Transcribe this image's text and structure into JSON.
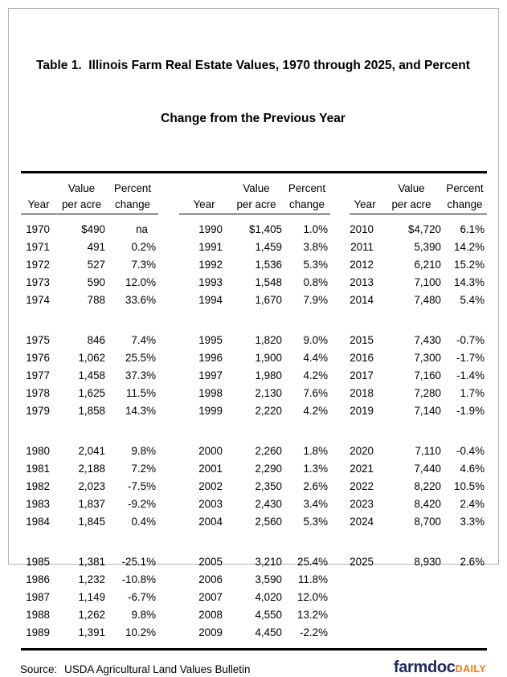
{
  "title": {
    "line1": "Table 1.  Illinois Farm Real Estate Values, 1970 through 2025, and Percent",
    "line2": "Change from the Previous Year"
  },
  "header": {
    "year": "Year",
    "value_top": "Value",
    "value_bottom": "per acre",
    "pct_top": "Percent",
    "pct_bottom": "change"
  },
  "table": {
    "blocks": [
      {
        "rows": [
          [
            "1970",
            "$490",
            "na",
            "1990",
            "$1,405",
            "1.0%",
            "2010",
            "$4,720",
            "6.1%"
          ],
          [
            "1971",
            "491",
            "0.2%",
            "1991",
            "1,459",
            "3.8%",
            "2011",
            "5,390",
            "14.2%"
          ],
          [
            "1972",
            "527",
            "7.3%",
            "1992",
            "1,536",
            "5.3%",
            "2012",
            "6,210",
            "15.2%"
          ],
          [
            "1973",
            "590",
            "12.0%",
            "1993",
            "1,548",
            "0.8%",
            "2013",
            "7,100",
            "14.3%"
          ],
          [
            "1974",
            "788",
            "33.6%",
            "1994",
            "1,670",
            "7.9%",
            "2014",
            "7,480",
            "5.4%"
          ]
        ]
      },
      {
        "rows": [
          [
            "1975",
            "846",
            "7.4%",
            "1995",
            "1,820",
            "9.0%",
            "2015",
            "7,430",
            "-0.7%"
          ],
          [
            "1976",
            "1,062",
            "25.5%",
            "1996",
            "1,900",
            "4.4%",
            "2016",
            "7,300",
            "-1.7%"
          ],
          [
            "1977",
            "1,458",
            "37.3%",
            "1997",
            "1,980",
            "4.2%",
            "2017",
            "7,160",
            "-1.4%"
          ],
          [
            "1978",
            "1,625",
            "11.5%",
            "1998",
            "2,130",
            "7.6%",
            "2018",
            "7,280",
            "1.7%"
          ],
          [
            "1979",
            "1,858",
            "14.3%",
            "1999",
            "2,220",
            "4.2%",
            "2019",
            "7,140",
            "-1.9%"
          ]
        ]
      },
      {
        "rows": [
          [
            "1980",
            "2,041",
            "9.8%",
            "2000",
            "2,260",
            "1.8%",
            "2020",
            "7,110",
            "-0.4%"
          ],
          [
            "1981",
            "2,188",
            "7.2%",
            "2001",
            "2,290",
            "1.3%",
            "2021",
            "7,440",
            "4.6%"
          ],
          [
            "1982",
            "2,023",
            "-7.5%",
            "2002",
            "2,350",
            "2.6%",
            "2022",
            "8,220",
            "10.5%"
          ],
          [
            "1983",
            "1,837",
            "-9.2%",
            "2003",
            "2,430",
            "3.4%",
            "2023",
            "8,420",
            "2.4%"
          ],
          [
            "1984",
            "1,845",
            "0.4%",
            "2004",
            "2,560",
            "5.3%",
            "2024",
            "8,700",
            "3.3%"
          ]
        ]
      },
      {
        "rows": [
          [
            "1985",
            "1,381",
            "-25.1%",
            "2005",
            "3,210",
            "25.4%",
            "2025",
            "8,930",
            "2.6%"
          ],
          [
            "1986",
            "1,232",
            "-10.8%",
            "2006",
            "3,590",
            "11.8%",
            "",
            "",
            ""
          ],
          [
            "1987",
            "1,149",
            "-6.7%",
            "2007",
            "4,020",
            "12.0%",
            "",
            "",
            ""
          ],
          [
            "1988",
            "1,262",
            "9.8%",
            "2008",
            "4,550",
            "13.2%",
            "",
            "",
            ""
          ],
          [
            "1989",
            "1,391",
            "10.2%",
            "2009",
            "4,450",
            "-2.2%",
            "",
            "",
            ""
          ]
        ]
      }
    ]
  },
  "footer": {
    "source_label": "Source:",
    "source_text": "USDA Agricultural Land Values Bulletin",
    "logo_main": "farmdoc",
    "logo_suffix": "DAILY"
  },
  "colors": {
    "logo_navy": "#202a5c",
    "logo_orange": "#f4790f",
    "frame_border": "#b3b3b3",
    "text": "#000000"
  },
  "chart_data": {
    "type": "table",
    "title": "Table 1.  Illinois Farm Real Estate Values, 1970 through 2025, and Percent Change from the Previous Year",
    "columns": [
      "Year",
      "Value per acre ($)",
      "Percent change from previous year (%)"
    ],
    "source": "USDA Agricultural Land Values Bulletin",
    "rows": [
      [
        1970,
        490,
        null
      ],
      [
        1971,
        491,
        0.2
      ],
      [
        1972,
        527,
        7.3
      ],
      [
        1973,
        590,
        12.0
      ],
      [
        1974,
        788,
        33.6
      ],
      [
        1975,
        846,
        7.4
      ],
      [
        1976,
        1062,
        25.5
      ],
      [
        1977,
        1458,
        37.3
      ],
      [
        1978,
        1625,
        11.5
      ],
      [
        1979,
        1858,
        14.3
      ],
      [
        1980,
        2041,
        9.8
      ],
      [
        1981,
        2188,
        7.2
      ],
      [
        1982,
        2023,
        -7.5
      ],
      [
        1983,
        1837,
        -9.2
      ],
      [
        1984,
        1845,
        0.4
      ],
      [
        1985,
        1381,
        -25.1
      ],
      [
        1986,
        1232,
        -10.8
      ],
      [
        1987,
        1149,
        -6.7
      ],
      [
        1988,
        1262,
        9.8
      ],
      [
        1989,
        1391,
        10.2
      ],
      [
        1990,
        1405,
        1.0
      ],
      [
        1991,
        1459,
        3.8
      ],
      [
        1992,
        1536,
        5.3
      ],
      [
        1993,
        1548,
        0.8
      ],
      [
        1994,
        1670,
        7.9
      ],
      [
        1995,
        1820,
        9.0
      ],
      [
        1996,
        1900,
        4.4
      ],
      [
        1997,
        1980,
        4.2
      ],
      [
        1998,
        2130,
        7.6
      ],
      [
        1999,
        2220,
        4.2
      ],
      [
        2000,
        2260,
        1.8
      ],
      [
        2001,
        2290,
        1.3
      ],
      [
        2002,
        2350,
        2.6
      ],
      [
        2003,
        2430,
        3.4
      ],
      [
        2004,
        2560,
        5.3
      ],
      [
        2005,
        3210,
        25.4
      ],
      [
        2006,
        3590,
        11.8
      ],
      [
        2007,
        4020,
        12.0
      ],
      [
        2008,
        4550,
        13.2
      ],
      [
        2009,
        4450,
        -2.2
      ],
      [
        2010,
        4720,
        6.1
      ],
      [
        2011,
        5390,
        14.2
      ],
      [
        2012,
        6210,
        15.2
      ],
      [
        2013,
        7100,
        14.3
      ],
      [
        2014,
        7480,
        5.4
      ],
      [
        2015,
        7430,
        -0.7
      ],
      [
        2016,
        7300,
        -1.7
      ],
      [
        2017,
        7160,
        -1.4
      ],
      [
        2018,
        7280,
        1.7
      ],
      [
        2019,
        7140,
        -1.9
      ],
      [
        2020,
        7110,
        -0.4
      ],
      [
        2021,
        7440,
        4.6
      ],
      [
        2022,
        8220,
        10.5
      ],
      [
        2023,
        8420,
        2.4
      ],
      [
        2024,
        8700,
        3.3
      ],
      [
        2025,
        8930,
        2.6
      ]
    ]
  }
}
